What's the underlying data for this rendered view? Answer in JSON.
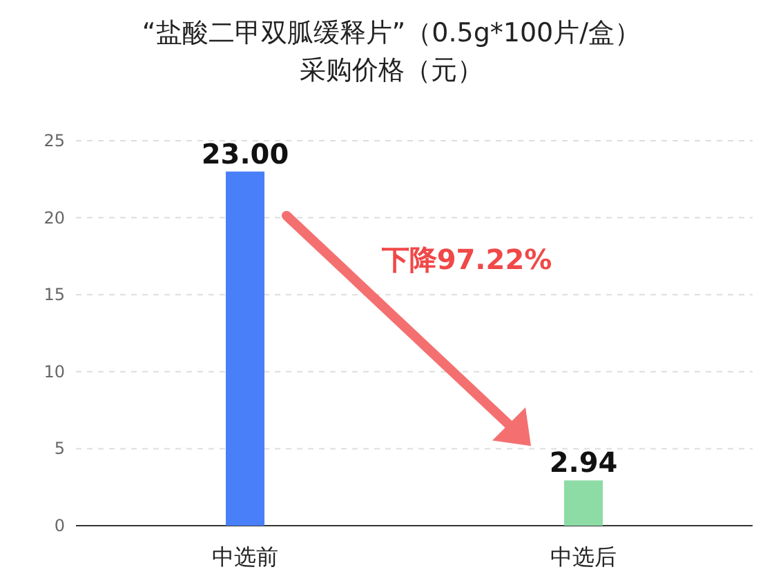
{
  "chart_data": {
    "type": "bar",
    "title": "“盐酸二甲双胍缓释片”（0.5g*100片/盒）",
    "subtitle": "采购价格（元）",
    "categories": [
      "中选前",
      "中选后"
    ],
    "values": [
      23,
      2.94
    ],
    "colors": [
      "#4a7ffa",
      "#8ddca6"
    ],
    "value_labels": [
      "23.00",
      "2.94"
    ],
    "ylim": [
      0,
      25
    ],
    "yticks": [
      0,
      5,
      10,
      15,
      20,
      25
    ],
    "grid": "y",
    "annotations": [
      "下降97.22%"
    ]
  }
}
